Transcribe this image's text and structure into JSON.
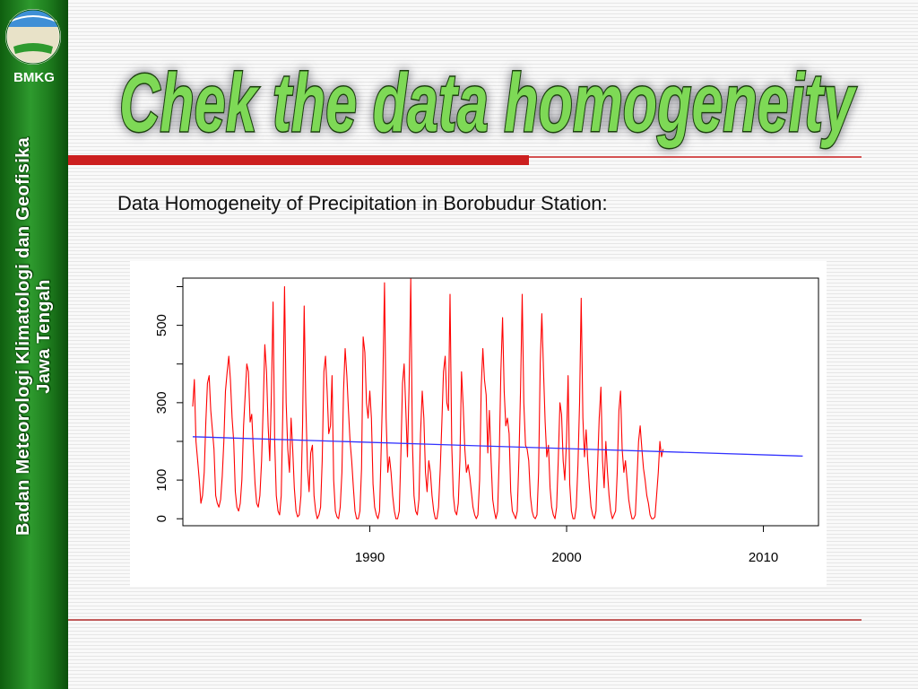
{
  "sidebar": {
    "abbr": "BMKG",
    "org_line1": "Badan Meteorologi Klimatologi dan Geofisika",
    "org_line2": "Jawa Tengah"
  },
  "slide": {
    "title": "Chek the data homogeneity",
    "subtitle": "Data Homogeneity of Precipitation in Borobudur Station:"
  },
  "colors": {
    "sidebar_green": "#2e9a2e",
    "title_fill": "#7ed957",
    "accent_red": "#cc1f1f",
    "series_red": "#ff0000",
    "trend_blue": "#3333ff"
  },
  "chart_data": {
    "type": "line",
    "title": "",
    "xlabel": "",
    "ylabel": "",
    "xlim": [
      1980.5,
      2012.8
    ],
    "ylim": [
      -18,
      622
    ],
    "x_ticks": [
      1990,
      2000,
      2010
    ],
    "x_tick_labels": [
      "1990",
      "2000",
      "2010"
    ],
    "y_ticks": [
      0,
      100,
      200,
      300,
      400,
      500,
      600
    ],
    "y_tick_labels": [
      "0",
      "100",
      "300",
      "500"
    ],
    "y_tick_label_values": [
      0,
      100,
      300,
      500
    ],
    "grid": false,
    "legend": "none",
    "series": [
      {
        "color": "#ff0000",
        "x_start": 1981.0,
        "x_step": 0.0833,
        "values": [
          290,
          360,
          200,
          150,
          100,
          40,
          60,
          120,
          250,
          350,
          370,
          280,
          230,
          180,
          60,
          40,
          30,
          50,
          110,
          200,
          330,
          380,
          420,
          360,
          260,
          200,
          70,
          30,
          20,
          40,
          100,
          240,
          320,
          400,
          380,
          250,
          270,
          180,
          90,
          40,
          30,
          60,
          150,
          290,
          450,
          380,
          240,
          150,
          320,
          560,
          200,
          60,
          20,
          10,
          60,
          280,
          600,
          300,
          180,
          120,
          260,
          180,
          80,
          20,
          5,
          10,
          60,
          240,
          550,
          300,
          130,
          70,
          170,
          190,
          60,
          20,
          0,
          10,
          30,
          150,
          380,
          420,
          330,
          220,
          240,
          370,
          100,
          20,
          5,
          0,
          30,
          120,
          330,
          440,
          370,
          280,
          200,
          150,
          80,
          20,
          0,
          0,
          20,
          130,
          470,
          430,
          300,
          260,
          330,
          260,
          90,
          30,
          10,
          0,
          20,
          180,
          360,
          610,
          260,
          120,
          160,
          120,
          60,
          20,
          0,
          0,
          20,
          170,
          350,
          400,
          280,
          160,
          340,
          620,
          200,
          60,
          20,
          10,
          50,
          220,
          330,
          260,
          120,
          70,
          150,
          120,
          60,
          20,
          0,
          0,
          30,
          130,
          250,
          380,
          420,
          300,
          280,
          580,
          190,
          60,
          20,
          10,
          40,
          150,
          380,
          290,
          180,
          120,
          140,
          110,
          70,
          30,
          10,
          0,
          10,
          100,
          340,
          440,
          360,
          320,
          170,
          280,
          150,
          50,
          20,
          0,
          20,
          160,
          380,
          520,
          330,
          240,
          260,
          220,
          70,
          20,
          10,
          0,
          20,
          150,
          340,
          580,
          300,
          190,
          180,
          150,
          60,
          20,
          5,
          0,
          10,
          120,
          400,
          530,
          380,
          250,
          160,
          190,
          80,
          30,
          10,
          0,
          30,
          150,
          300,
          270,
          150,
          100,
          200,
          370,
          90,
          20,
          0,
          0,
          30,
          140,
          300,
          570,
          260,
          160,
          230,
          150,
          80,
          30,
          10,
          0,
          20,
          140,
          260,
          340,
          150,
          80,
          200,
          120,
          60,
          20,
          0,
          10,
          20,
          120,
          280,
          330,
          180,
          120,
          150,
          100,
          50,
          20,
          0,
          0,
          10,
          100,
          200,
          240,
          180,
          130,
          100,
          60,
          40,
          10,
          0,
          0,
          5,
          60,
          120,
          200,
          160,
          180
        ]
      },
      {
        "color": "#3333ff",
        "x": [
          1981.0,
          2012.0
        ],
        "values": [
          212,
          162
        ]
      }
    ]
  }
}
